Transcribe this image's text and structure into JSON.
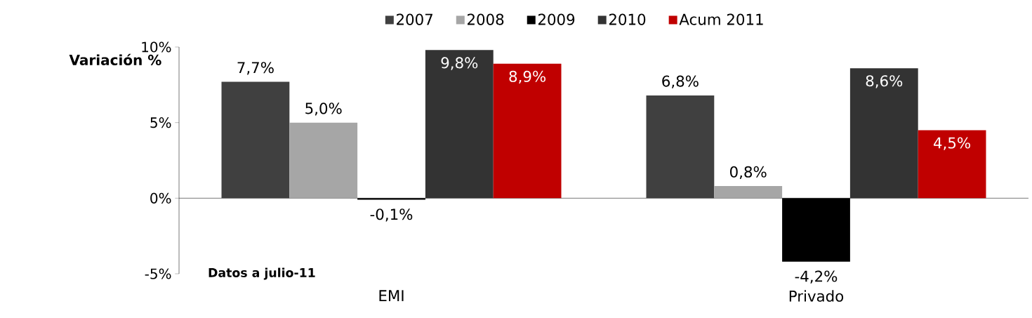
{
  "chart_data": {
    "type": "bar",
    "ylabel": "Variación %",
    "categories": [
      "EMI",
      "Privado"
    ],
    "series": [
      {
        "name": "2007",
        "color": "#404040",
        "values": [
          7.7,
          6.8
        ],
        "value_labels": [
          "7,7%",
          "6,8%"
        ]
      },
      {
        "name": "2008",
        "color": "#a6a6a6",
        "values": [
          5.0,
          0.8
        ],
        "value_labels": [
          "5,0%",
          "0,8%"
        ]
      },
      {
        "name": "2009",
        "color": "#000000",
        "values": [
          -0.1,
          -4.2
        ],
        "value_labels": [
          "-0,1%",
          "-4,2%"
        ]
      },
      {
        "name": "2010",
        "color": "#333333",
        "values": [
          9.8,
          8.6
        ],
        "value_labels": [
          "9,8%",
          "8,6%"
        ]
      },
      {
        "name": "Acum 2011",
        "color": "#c00000",
        "values": [
          8.9,
          4.5
        ],
        "value_labels": [
          "8,9%",
          "4,5%"
        ]
      }
    ],
    "ylim": [
      -5,
      10
    ],
    "yticks": [
      {
        "value": -5,
        "label": "-5%"
      },
      {
        "value": 0,
        "label": "0%"
      },
      {
        "value": 5,
        "label": "5%"
      },
      {
        "value": 10,
        "label": "10%"
      }
    ],
    "legend": "top",
    "annotations": [
      "Datos a julio-11"
    ]
  }
}
